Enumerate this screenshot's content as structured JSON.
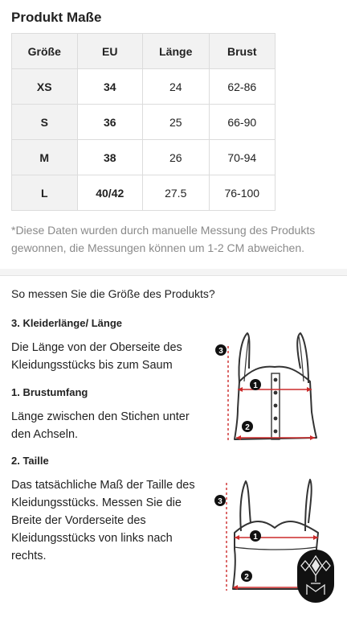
{
  "title": "Produkt Maße",
  "table": {
    "headers": [
      "Größe",
      "EU",
      "Länge",
      "Brust"
    ],
    "rows": [
      [
        "XS",
        "34",
        "24",
        "62-86"
      ],
      [
        "S",
        "36",
        "25",
        "66-90"
      ],
      [
        "M",
        "38",
        "26",
        "70-94"
      ],
      [
        "L",
        "40/42",
        "27.5",
        "76-100"
      ]
    ]
  },
  "note": "*Diese Daten wurden durch manuelle Messung des Produkts gewonnen, die Messungen können um 1-2 CM abweichen.",
  "howto": "So messen Sie die Größe des Produkts?",
  "sections": [
    {
      "title": "3. Kleiderlänge/ Länge",
      "text": "Die Länge von der Oberseite des Kleidungsstücks bis zum Saum"
    },
    {
      "title": "1. Brustumfang",
      "text": "Länge zwischen den Stichen unter den Achseln."
    },
    {
      "title": "2. Taille",
      "text": "Das tatsächliche Maß der Taille des Kleidungsstücks. Messen Sie die Breite der Vorderseite des Kleidungsstücks von links nach rechts."
    }
  ],
  "diagram_markers": {
    "one": "1",
    "two": "2",
    "three": "3"
  },
  "accent_color": "#cc2a2a"
}
